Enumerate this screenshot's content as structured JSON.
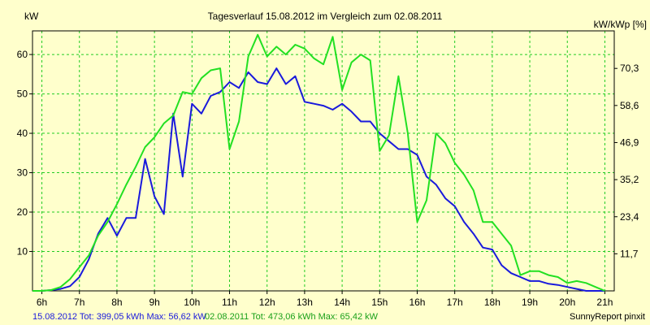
{
  "chart_data": {
    "type": "line",
    "title": "Tagesverlauf 15.08.2012 im Vergleich zum 02.08.2011",
    "ylabel_left": "kW",
    "ylabel_right": "kW/kWp [%]",
    "xlim": [
      5.75,
      21.25
    ],
    "ylim": [
      0,
      66
    ],
    "grid": true,
    "x_ticks": [
      {
        "x": 6,
        "label": "6h"
      },
      {
        "x": 7,
        "label": "7h"
      },
      {
        "x": 8,
        "label": "8h"
      },
      {
        "x": 9,
        "label": "9h"
      },
      {
        "x": 10,
        "label": "10h"
      },
      {
        "x": 11,
        "label": "11h"
      },
      {
        "x": 12,
        "label": "12h"
      },
      {
        "x": 13,
        "label": "13h"
      },
      {
        "x": 14,
        "label": "14h"
      },
      {
        "x": 15,
        "label": "15h"
      },
      {
        "x": 16,
        "label": "16h"
      },
      {
        "x": 17,
        "label": "17h"
      },
      {
        "x": 18,
        "label": "18h"
      },
      {
        "x": 19,
        "label": "19h"
      },
      {
        "x": 20,
        "label": "20h"
      },
      {
        "x": 21,
        "label": "21h"
      }
    ],
    "y_ticks_left": [
      {
        "y": 10,
        "label": "10"
      },
      {
        "y": 20,
        "label": "20"
      },
      {
        "y": 30,
        "label": "30"
      },
      {
        "y": 40,
        "label": "40"
      },
      {
        "y": 50,
        "label": "50"
      },
      {
        "y": 60,
        "label": "60"
      }
    ],
    "y_ticks_right": [
      {
        "y": 9.41,
        "label": "11,7"
      },
      {
        "y": 18.82,
        "label": "23,4"
      },
      {
        "y": 28.24,
        "label": "35,2"
      },
      {
        "y": 37.65,
        "label": "46,9"
      },
      {
        "y": 47.06,
        "label": "58,6"
      },
      {
        "y": 56.47,
        "label": "70,3"
      }
    ],
    "series": [
      {
        "name": "15.08.2012",
        "color": "#1a1adc",
        "x": [
          5.75,
          6,
          6.25,
          6.5,
          6.75,
          7,
          7.25,
          7.5,
          7.75,
          8,
          8.25,
          8.5,
          8.75,
          9,
          9.25,
          9.5,
          9.75,
          10,
          10.25,
          10.5,
          10.75,
          11,
          11.25,
          11.5,
          11.75,
          12,
          12.25,
          12.5,
          12.75,
          13,
          13.25,
          13.5,
          13.75,
          14,
          14.25,
          14.5,
          14.75,
          15,
          15.25,
          15.5,
          15.75,
          16,
          16.25,
          16.5,
          16.75,
          17,
          17.25,
          17.5,
          17.75,
          18,
          18.25,
          18.5,
          18.75,
          19,
          19.25,
          19.5,
          19.75,
          20,
          20.25,
          20.5,
          20.75,
          21
        ],
        "values": [
          0,
          0,
          0.2,
          0.5,
          1.2,
          3.5,
          8,
          14.5,
          18.5,
          14,
          18.5,
          18.5,
          33.5,
          24,
          19.5,
          45,
          29,
          47.5,
          45,
          49.5,
          50.5,
          53,
          51.5,
          55.5,
          53,
          52.5,
          56.5,
          52.5,
          54.5,
          48,
          47.5,
          47,
          46,
          47.5,
          45.5,
          43,
          43,
          40,
          38,
          36,
          36,
          34.5,
          29,
          27,
          23.5,
          21.5,
          17.5,
          14.5,
          11,
          10.5,
          6.5,
          4.5,
          3.5,
          2.5,
          2.5,
          1.8,
          1.5,
          1,
          0.5,
          0,
          0,
          0
        ]
      },
      {
        "name": "02.08.2011",
        "color": "#22e022",
        "x": [
          5.75,
          6,
          6.25,
          6.5,
          6.75,
          7,
          7.25,
          7.5,
          7.75,
          8,
          8.25,
          8.5,
          8.75,
          9,
          9.25,
          9.5,
          9.75,
          10,
          10.25,
          10.5,
          10.75,
          11,
          11.25,
          11.5,
          11.75,
          12,
          12.25,
          12.5,
          12.75,
          13,
          13.25,
          13.5,
          13.75,
          14,
          14.25,
          14.5,
          14.75,
          15,
          15.25,
          15.5,
          15.75,
          16,
          16.25,
          16.5,
          16.75,
          17,
          17.25,
          17.5,
          17.75,
          18,
          18.25,
          18.5,
          18.75,
          19,
          19.25,
          19.5,
          19.75,
          20,
          20.25,
          20.5,
          20.75,
          21
        ],
        "values": [
          0,
          0,
          0.2,
          1,
          3,
          6,
          9,
          14,
          17.5,
          22,
          27,
          31.5,
          36.5,
          39,
          42.5,
          44.5,
          50.5,
          50,
          54,
          56,
          56.5,
          36,
          43,
          59.5,
          65,
          59.5,
          62,
          60,
          62.5,
          61.5,
          59,
          57.5,
          64.5,
          51,
          58,
          60,
          58.5,
          35.5,
          39.5,
          54.5,
          40,
          17.5,
          23,
          40,
          37.5,
          32.5,
          29.5,
          25.5,
          17.5,
          17.5,
          14.5,
          11.5,
          4,
          5,
          5,
          4,
          3.5,
          2,
          2.5,
          2,
          1,
          0
        ]
      }
    ]
  },
  "footer": {
    "series1_text": "15.08.2012 Tot: 399,05 kWh Max: 56,62 kW",
    "series2_text": "02.08.2011 Tot: 473,06 kWh Max: 65,42 kW",
    "source": "SunnyReport pinxit"
  },
  "colors": {
    "background": "#ffffcc",
    "grid": "#22cc22",
    "axis": "#000000"
  }
}
